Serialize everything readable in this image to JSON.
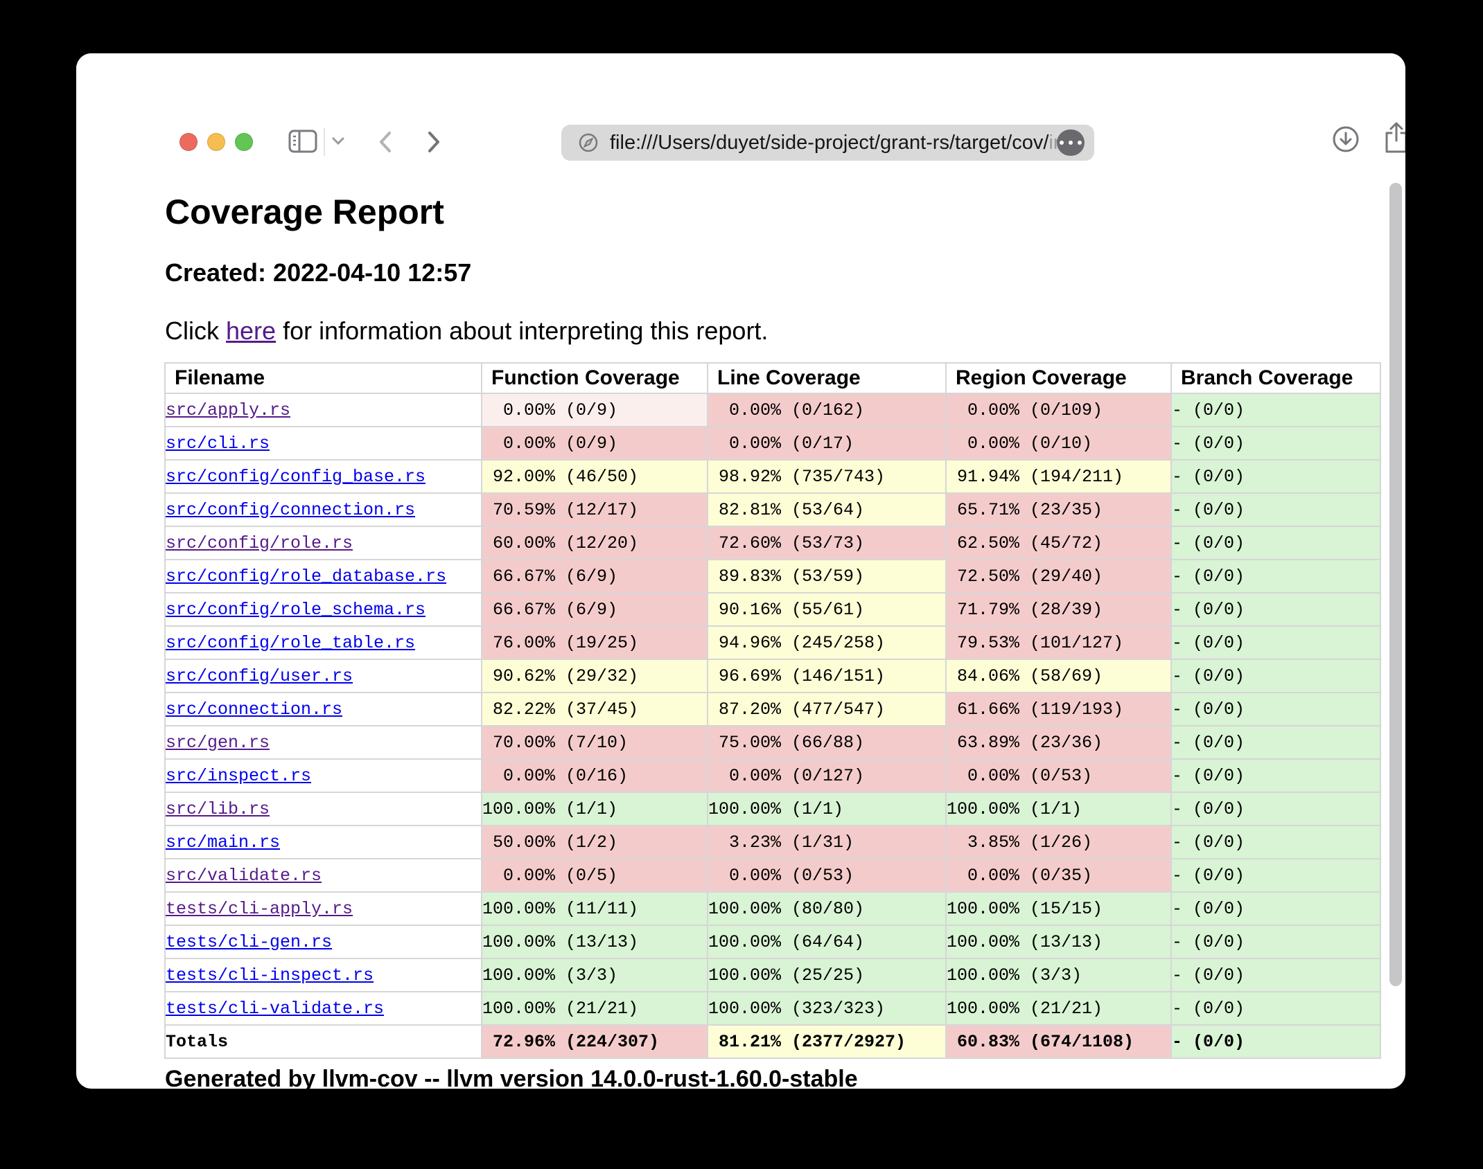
{
  "browser": {
    "url_visible": "file:///Users/duyet/side-project/grant-rs/target/cov/",
    "url_truncated": "in",
    "traffic_lights": {
      "close": "#ed6a5f",
      "minimize": "#f6be50",
      "zoom": "#62c554"
    },
    "icons": [
      "sidebar",
      "chevron-down",
      "back",
      "forward",
      "page-compass",
      "more-ellipsis",
      "downloads",
      "share",
      "new-tab-plus"
    ]
  },
  "page": {
    "title": "Coverage Report",
    "created": "Created: 2022-04-10 12:57",
    "info_prefix": "Click ",
    "info_link": "here",
    "info_suffix": " for information about interpreting this report.",
    "footer": "Generated by llvm-cov -- llvm version 14.0.0-rust-1.60.0-stable"
  },
  "colors": {
    "cell_red": "#f4cbcb",
    "cell_yellow": "#fdfdd6",
    "cell_green": "#d9f3d5",
    "cell_hover_red": "#fbefee",
    "row_hover_gray": "#ececec",
    "link_unvisited": "#0000ee",
    "link_visited": "#551a8b"
  },
  "table": {
    "columns": [
      "Filename",
      "Function Coverage",
      "Line Coverage",
      "Region Coverage",
      "Branch Coverage"
    ],
    "rows": [
      {
        "file": "src/apply.rs",
        "visited": true,
        "row_hover": true,
        "function": {
          "pct": "0.00%",
          "frac": "(0/9)",
          "color": "lightred"
        },
        "line": {
          "pct": "0.00%",
          "frac": "(0/162)",
          "color": "red"
        },
        "region": {
          "pct": "0.00%",
          "frac": "(0/109)",
          "color": "red"
        },
        "branch": {
          "text": "- (0/0)",
          "color": "green"
        }
      },
      {
        "file": "src/cli.rs",
        "visited": false,
        "function": {
          "pct": "0.00%",
          "frac": "(0/9)",
          "color": "red"
        },
        "line": {
          "pct": "0.00%",
          "frac": "(0/17)",
          "color": "red"
        },
        "region": {
          "pct": "0.00%",
          "frac": "(0/10)",
          "color": "red"
        },
        "branch": {
          "text": "- (0/0)",
          "color": "green"
        }
      },
      {
        "file": "src/config/config_base.rs",
        "visited": false,
        "function": {
          "pct": "92.00%",
          "frac": "(46/50)",
          "color": "yellow"
        },
        "line": {
          "pct": "98.92%",
          "frac": "(735/743)",
          "color": "yellow"
        },
        "region": {
          "pct": "91.94%",
          "frac": "(194/211)",
          "color": "yellow"
        },
        "branch": {
          "text": "- (0/0)",
          "color": "green"
        }
      },
      {
        "file": "src/config/connection.rs",
        "visited": false,
        "function": {
          "pct": "70.59%",
          "frac": "(12/17)",
          "color": "red"
        },
        "line": {
          "pct": "82.81%",
          "frac": "(53/64)",
          "color": "yellow"
        },
        "region": {
          "pct": "65.71%",
          "frac": "(23/35)",
          "color": "red"
        },
        "branch": {
          "text": "- (0/0)",
          "color": "green"
        }
      },
      {
        "file": "src/config/role.rs",
        "visited": true,
        "function": {
          "pct": "60.00%",
          "frac": "(12/20)",
          "color": "red"
        },
        "line": {
          "pct": "72.60%",
          "frac": "(53/73)",
          "color": "red"
        },
        "region": {
          "pct": "62.50%",
          "frac": "(45/72)",
          "color": "red"
        },
        "branch": {
          "text": "- (0/0)",
          "color": "green"
        }
      },
      {
        "file": "src/config/role_database.rs",
        "visited": false,
        "function": {
          "pct": "66.67%",
          "frac": "(6/9)",
          "color": "red"
        },
        "line": {
          "pct": "89.83%",
          "frac": "(53/59)",
          "color": "yellow"
        },
        "region": {
          "pct": "72.50%",
          "frac": "(29/40)",
          "color": "red"
        },
        "branch": {
          "text": "- (0/0)",
          "color": "green"
        }
      },
      {
        "file": "src/config/role_schema.rs",
        "visited": false,
        "function": {
          "pct": "66.67%",
          "frac": "(6/9)",
          "color": "red"
        },
        "line": {
          "pct": "90.16%",
          "frac": "(55/61)",
          "color": "yellow"
        },
        "region": {
          "pct": "71.79%",
          "frac": "(28/39)",
          "color": "red"
        },
        "branch": {
          "text": "- (0/0)",
          "color": "green"
        }
      },
      {
        "file": "src/config/role_table.rs",
        "visited": false,
        "function": {
          "pct": "76.00%",
          "frac": "(19/25)",
          "color": "red"
        },
        "line": {
          "pct": "94.96%",
          "frac": "(245/258)",
          "color": "yellow"
        },
        "region": {
          "pct": "79.53%",
          "frac": "(101/127)",
          "color": "red"
        },
        "branch": {
          "text": "- (0/0)",
          "color": "green"
        }
      },
      {
        "file": "src/config/user.rs",
        "visited": false,
        "function": {
          "pct": "90.62%",
          "frac": "(29/32)",
          "color": "yellow"
        },
        "line": {
          "pct": "96.69%",
          "frac": "(146/151)",
          "color": "yellow"
        },
        "region": {
          "pct": "84.06%",
          "frac": "(58/69)",
          "color": "yellow"
        },
        "branch": {
          "text": "- (0/0)",
          "color": "green"
        }
      },
      {
        "file": "src/connection.rs",
        "visited": false,
        "function": {
          "pct": "82.22%",
          "frac": "(37/45)",
          "color": "yellow"
        },
        "line": {
          "pct": "87.20%",
          "frac": "(477/547)",
          "color": "yellow"
        },
        "region": {
          "pct": "61.66%",
          "frac": "(119/193)",
          "color": "red"
        },
        "branch": {
          "text": "- (0/0)",
          "color": "green"
        }
      },
      {
        "file": "src/gen.rs",
        "visited": true,
        "function": {
          "pct": "70.00%",
          "frac": "(7/10)",
          "color": "red"
        },
        "line": {
          "pct": "75.00%",
          "frac": "(66/88)",
          "color": "red"
        },
        "region": {
          "pct": "63.89%",
          "frac": "(23/36)",
          "color": "red"
        },
        "branch": {
          "text": "- (0/0)",
          "color": "green"
        }
      },
      {
        "file": "src/inspect.rs",
        "visited": false,
        "function": {
          "pct": "0.00%",
          "frac": "(0/16)",
          "color": "red"
        },
        "line": {
          "pct": "0.00%",
          "frac": "(0/127)",
          "color": "red"
        },
        "region": {
          "pct": "0.00%",
          "frac": "(0/53)",
          "color": "red"
        },
        "branch": {
          "text": "- (0/0)",
          "color": "green"
        }
      },
      {
        "file": "src/lib.rs",
        "visited": true,
        "function": {
          "pct": "100.00%",
          "frac": "(1/1)",
          "color": "green"
        },
        "line": {
          "pct": "100.00%",
          "frac": "(1/1)",
          "color": "green"
        },
        "region": {
          "pct": "100.00%",
          "frac": "(1/1)",
          "color": "green"
        },
        "branch": {
          "text": "- (0/0)",
          "color": "green"
        }
      },
      {
        "file": "src/main.rs",
        "visited": false,
        "function": {
          "pct": "50.00%",
          "frac": "(1/2)",
          "color": "red"
        },
        "line": {
          "pct": "3.23%",
          "frac": "(1/31)",
          "color": "red"
        },
        "region": {
          "pct": "3.85%",
          "frac": "(1/26)",
          "color": "red"
        },
        "branch": {
          "text": "- (0/0)",
          "color": "green"
        }
      },
      {
        "file": "src/validate.rs",
        "visited": true,
        "function": {
          "pct": "0.00%",
          "frac": "(0/5)",
          "color": "red"
        },
        "line": {
          "pct": "0.00%",
          "frac": "(0/53)",
          "color": "red"
        },
        "region": {
          "pct": "0.00%",
          "frac": "(0/35)",
          "color": "red"
        },
        "branch": {
          "text": "- (0/0)",
          "color": "green"
        }
      },
      {
        "file": "tests/cli-apply.rs",
        "visited": true,
        "function": {
          "pct": "100.00%",
          "frac": "(11/11)",
          "color": "green"
        },
        "line": {
          "pct": "100.00%",
          "frac": "(80/80)",
          "color": "green"
        },
        "region": {
          "pct": "100.00%",
          "frac": "(15/15)",
          "color": "green"
        },
        "branch": {
          "text": "- (0/0)",
          "color": "green"
        }
      },
      {
        "file": "tests/cli-gen.rs",
        "visited": false,
        "function": {
          "pct": "100.00%",
          "frac": "(13/13)",
          "color": "green"
        },
        "line": {
          "pct": "100.00%",
          "frac": "(64/64)",
          "color": "green"
        },
        "region": {
          "pct": "100.00%",
          "frac": "(13/13)",
          "color": "green"
        },
        "branch": {
          "text": "- (0/0)",
          "color": "green"
        }
      },
      {
        "file": "tests/cli-inspect.rs",
        "visited": false,
        "function": {
          "pct": "100.00%",
          "frac": "(3/3)",
          "color": "green"
        },
        "line": {
          "pct": "100.00%",
          "frac": "(25/25)",
          "color": "green"
        },
        "region": {
          "pct": "100.00%",
          "frac": "(3/3)",
          "color": "green"
        },
        "branch": {
          "text": "- (0/0)",
          "color": "green"
        }
      },
      {
        "file": "tests/cli-validate.rs",
        "visited": false,
        "function": {
          "pct": "100.00%",
          "frac": "(21/21)",
          "color": "green"
        },
        "line": {
          "pct": "100.00%",
          "frac": "(323/323)",
          "color": "green"
        },
        "region": {
          "pct": "100.00%",
          "frac": "(21/21)",
          "color": "green"
        },
        "branch": {
          "text": "- (0/0)",
          "color": "green"
        }
      }
    ],
    "totals": {
      "label": "Totals",
      "function": {
        "pct": "72.96%",
        "frac": "(224/307)",
        "color": "red"
      },
      "line": {
        "pct": "81.21%",
        "frac": "(2377/2927)",
        "color": "yellow"
      },
      "region": {
        "pct": "60.83%",
        "frac": "(674/1108)",
        "color": "red"
      },
      "branch": {
        "text": "- (0/0)",
        "color": "green"
      }
    }
  }
}
